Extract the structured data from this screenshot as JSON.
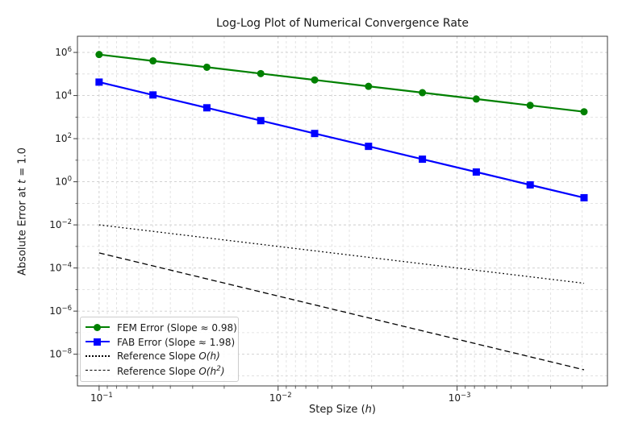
{
  "chart_data": {
    "type": "line",
    "title": "Log-Log Plot of Numerical Convergence Rate",
    "xlabel": "Step Size (h)",
    "ylabel": "Absolute Error at t = 1.0",
    "x_scale": "log",
    "y_scale": "log",
    "x_axis_reversed": true,
    "grid": "both",
    "x": [
      0.1,
      0.05,
      0.025,
      0.0125,
      0.00625,
      0.003125,
      0.0015625,
      0.00078125,
      0.000390625,
      0.0001953125
    ],
    "series": [
      {
        "name": "FEM Error (Slope ≈ 0.98)",
        "color": "#008000",
        "marker": "circle",
        "line_style": "solid",
        "values": [
          800000,
          405600,
          205600,
          104200,
          52850,
          26790,
          13580,
          6886,
          3491,
          1770
        ]
      },
      {
        "name": "FAB Error (Slope ≈ 1.98)",
        "color": "#0000ff",
        "marker": "square",
        "line_style": "solid",
        "values": [
          42000,
          10650,
          2699,
          684.3,
          173.5,
          43.98,
          11.15,
          2.827,
          0.7166,
          0.1817
        ]
      },
      {
        "name": "Reference Slope O(h)",
        "color": "#000000",
        "marker": "none",
        "line_style": "dotted",
        "x": [
          0.1,
          0.0001953125
        ],
        "values": [
          0.01,
          1.95e-05
        ]
      },
      {
        "name": "Reference Slope O(h²)",
        "color": "#000000",
        "marker": "none",
        "line_style": "dashed",
        "x": [
          0.1,
          0.0001953125
        ],
        "values": [
          0.0005,
          1.9e-09
        ]
      }
    ],
    "x_tick_exponents": [
      -1,
      -2,
      -3
    ],
    "y_tick_exponents": [
      6,
      4,
      2,
      0,
      -2,
      -4,
      -6,
      -8
    ],
    "xlim_log": [
      -0.879,
      -3.84
    ],
    "ylim_log": [
      6.75,
      -9.47
    ]
  },
  "axes": {
    "x_label": {
      "prefix": "Step Size (",
      "var": "h",
      "suffix": ")"
    },
    "y_label": {
      "prefix": "Absolute Error at ",
      "var": "t",
      "suffix": " = 1.0"
    }
  },
  "legend": {
    "items": [
      {
        "label": "FEM Error (Slope ≈ 0.98)"
      },
      {
        "label": "FAB Error (Slope ≈ 1.98)"
      },
      {
        "prefix": "Reference Slope ",
        "math": "O(h)"
      },
      {
        "prefix": "Reference Slope ",
        "math_open": "O(h",
        "math_sup": "2",
        "math_close": ")"
      }
    ]
  },
  "colors": {
    "fem_green": "#008000",
    "fab_blue": "#0000ff",
    "reference_black": "#000000",
    "grid_major": "#cccccc",
    "grid_minor": "#dcdcdc",
    "spine": "#3c3c3c",
    "text": "#1a1a1a"
  }
}
